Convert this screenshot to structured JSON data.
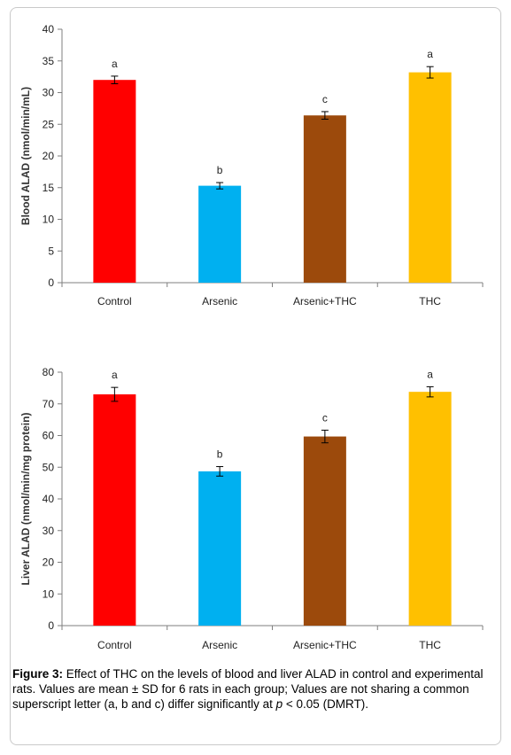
{
  "chart_data": [
    {
      "type": "bar",
      "ylabel": "Blood ALAD (nmol/min/mL)",
      "categories": [
        "Control",
        "Arsenic",
        "Arsenic+THC",
        "THC"
      ],
      "values": [
        32.0,
        15.3,
        26.4,
        33.2
      ],
      "errors": [
        0.6,
        0.5,
        0.6,
        0.9
      ],
      "significance": [
        "a",
        "b",
        "c",
        "a"
      ],
      "colors": [
        "#ff0000",
        "#00b0f0",
        "#9c4a0c",
        "#ffc000"
      ],
      "ylim": [
        0,
        40
      ],
      "yticks": [
        0,
        5,
        10,
        15,
        20,
        25,
        30,
        35,
        40
      ],
      "grid": false
    },
    {
      "type": "bar",
      "ylabel": "Liver ALAD (nmol/min/mg protein)",
      "categories": [
        "Control",
        "Arsenic",
        "Arsenic+THC",
        "THC"
      ],
      "values": [
        73.0,
        48.7,
        59.7,
        73.8
      ],
      "errors": [
        2.2,
        1.5,
        2.0,
        1.6
      ],
      "significance": [
        "a",
        "b",
        "c",
        "a"
      ],
      "colors": [
        "#ff0000",
        "#00b0f0",
        "#9c4a0c",
        "#ffc000"
      ],
      "ylim": [
        0,
        80
      ],
      "yticks": [
        0,
        10,
        20,
        30,
        40,
        50,
        60,
        70,
        80
      ],
      "grid": false
    }
  ],
  "caption": {
    "label": "Figure 3:",
    "text": " Effect of THC on the levels of blood and liver ALAD in control and experimental rats. Values are mean ± SD for 6 rats in each group; Values are not sharing a common superscript letter (a, b and c) differ significantly at ",
    "p_symbol": "p",
    "text_end": " < 0.05 (DMRT)."
  }
}
